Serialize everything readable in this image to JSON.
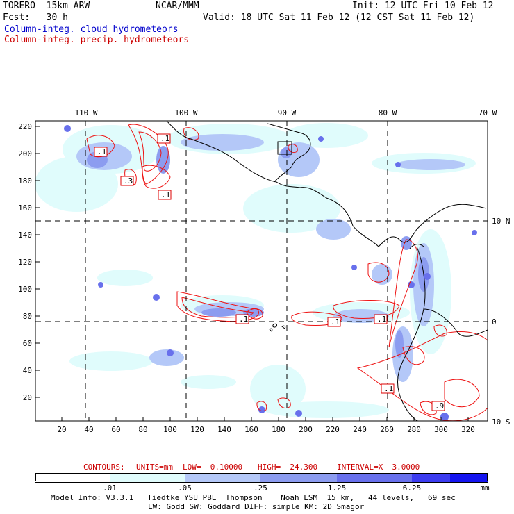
{
  "header": {
    "model": "TORERO  15km ARW",
    "org": "NCAR/MMM",
    "init": "Init: 12 UTC Fri 10 Feb 12",
    "fcst": "Fcst:   30 h",
    "valid": "Valid: 18 UTC Sat 11 Feb 12 (12 CST Sat 11 Feb 12)",
    "field_cloud": "Column-integ. cloud hydrometeors",
    "field_precip": "Column-integ. precip. hydrometeors"
  },
  "map": {
    "top_lon_labels": [
      "110 W",
      "100 W",
      "90 W",
      "80 W",
      "70 W"
    ],
    "right_lat_labels": [
      "10 N",
      "0",
      "10 S"
    ],
    "y_ticks": [
      "220",
      "200",
      "180",
      "160",
      "140",
      "120",
      "100",
      "80",
      "60",
      "40",
      "20"
    ],
    "x_ticks": [
      "20",
      "40",
      "60",
      "80",
      "100",
      "120",
      "140",
      "160",
      "180",
      "200",
      "220",
      "240",
      "260",
      "280",
      "300",
      "320"
    ],
    "contour_labels": [
      ".1",
      ".3",
      ".1",
      ".1",
      ".1",
      ".1",
      ".1",
      ".1",
      ".9"
    ]
  },
  "contour_info": {
    "contours": "CONTOURS:",
    "units": "UNITS=mm",
    "low": "LOW=  0.10000",
    "high": "HIGH=  24.300",
    "interval": "INTERVAL=X  3.0000"
  },
  "colorbar": {
    "ticks": [
      ".01",
      ".05",
      ".25",
      "1.25",
      "6.25"
    ],
    "units": "mm",
    "colors": [
      "#ffffff",
      "#e0fcfc",
      "#b4c8f8",
      "#8c9cf0",
      "#6870ec",
      "#3c3cf0",
      "#1414f0"
    ]
  },
  "footer": {
    "line1": "Model Info: V3.3.1   Tiedtke YSU PBL  Thompson    Noah LSM  15 km,   44 levels,   69 sec",
    "line2": "LW: Godd SW: Goddard DIFF: simple KM: 2D Smagor"
  }
}
